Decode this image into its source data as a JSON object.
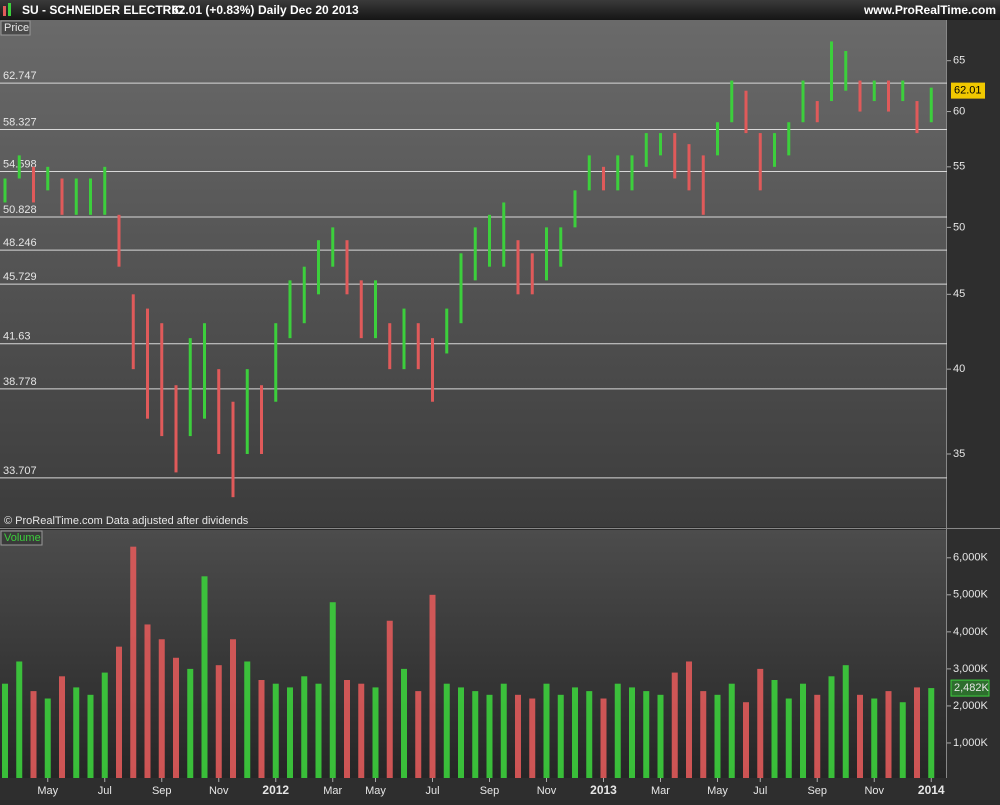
{
  "header": {
    "symbol": "SU - SCHNEIDER ELECTRIC",
    "quote": "62.01 (+0.83%)",
    "period": "Daily",
    "date": "Dec 20 2013",
    "site": "www.ProRealTime.com"
  },
  "chart_data": [
    {
      "type": "hilo",
      "panel_label": "Price",
      "note": "© ProRealTime.com  Data adjusted after dividends",
      "log": true,
      "up_color": "#3ccf3c",
      "down_color": "#e05a5a",
      "high": [
        54,
        56,
        55,
        55,
        54,
        54,
        54,
        55,
        51,
        45,
        44,
        43,
        39,
        42,
        43,
        40,
        38,
        40,
        39,
        43,
        46,
        47,
        49,
        50,
        49,
        46,
        46,
        43,
        44,
        43,
        42,
        44,
        48,
        50,
        51,
        52,
        49,
        48,
        50,
        50,
        53,
        56,
        55,
        56,
        56,
        58,
        58,
        58,
        57,
        56,
        59,
        63,
        62,
        58,
        58,
        59,
        63,
        61,
        67,
        66,
        63,
        63,
        63,
        63,
        61,
        62.3
      ],
      "low": [
        52,
        54,
        52,
        53,
        51,
        51,
        51,
        51,
        47,
        40,
        37,
        36,
        34,
        36,
        37,
        35,
        32.7,
        35,
        35,
        38,
        42,
        43,
        45,
        47,
        45,
        42,
        42,
        40,
        40,
        40,
        38,
        41,
        43,
        46,
        47,
        47,
        45,
        45,
        46,
        47,
        50,
        53,
        53,
        53,
        53,
        55,
        56,
        54,
        53,
        51,
        56,
        59,
        58,
        53,
        55,
        56,
        59,
        59,
        61,
        62,
        60,
        61,
        60,
        61,
        58,
        59
      ],
      "levels": [
        62.747,
        58.327,
        54.598,
        50.828,
        48.246,
        45.729,
        41.63,
        38.778,
        33.707
      ],
      "last_value": 62.01,
      "ylim": [
        31.2,
        69.3
      ],
      "yticks": [
        35,
        40,
        45,
        50,
        55,
        60,
        65
      ]
    },
    {
      "type": "bar",
      "panel_label": "Volume",
      "categories": [
        null,
        null,
        null,
        "May",
        null,
        null,
        null,
        "Jul",
        null,
        null,
        null,
        "Sep",
        null,
        null,
        null,
        "Nov",
        null,
        null,
        null,
        "2012",
        null,
        null,
        null,
        "Mar",
        null,
        null,
        "May",
        null,
        null,
        null,
        "Jul",
        null,
        null,
        null,
        "Sep",
        null,
        null,
        null,
        "Nov",
        null,
        null,
        null,
        "2013",
        null,
        null,
        null,
        "Mar",
        null,
        null,
        null,
        "May",
        null,
        null,
        "Jul",
        null,
        null,
        null,
        "Sep",
        null,
        null,
        null,
        "Nov",
        null,
        null,
        null,
        "2014"
      ],
      "values": [
        2600,
        3200,
        2400,
        2200,
        2800,
        2500,
        2300,
        2900,
        3600,
        6300,
        4200,
        3800,
        3300,
        3000,
        5500,
        3100,
        3800,
        3200,
        2700,
        2600,
        2500,
        2800,
        2600,
        4800,
        2700,
        2600,
        2500,
        4300,
        3000,
        2400,
        5000,
        2600,
        2500,
        2400,
        2300,
        2600,
        2300,
        2200,
        2600,
        2300,
        2500,
        2400,
        2200,
        2600,
        2500,
        2400,
        2300,
        2900,
        3200,
        2400,
        2300,
        2600,
        2100,
        3000,
        2700,
        2200,
        2600,
        2300,
        2800,
        3100,
        2300,
        2200,
        2400,
        2100,
        2500,
        2482
      ],
      "last_value": 2482,
      "last_value_label": "2,482K",
      "ylim": [
        0,
        6750
      ],
      "yticks": [
        {
          "value": 1000,
          "label": "1,000K"
        },
        {
          "value": 2000,
          "label": "2,000K"
        },
        {
          "value": 3000,
          "label": "3,000K"
        },
        {
          "value": 4000,
          "label": "4,000K"
        },
        {
          "value": 5000,
          "label": "5,000K"
        },
        {
          "value": 6000,
          "label": "6,000K"
        }
      ]
    }
  ]
}
